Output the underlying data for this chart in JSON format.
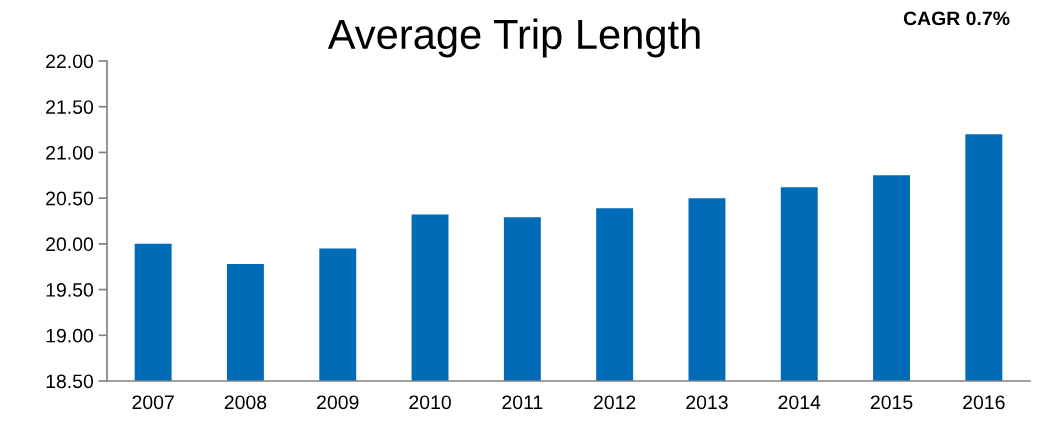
{
  "chart_data": {
    "type": "bar",
    "title": "Average Trip Length",
    "annotations": [
      "CAGR 0.7%"
    ],
    "categories": [
      "2007",
      "2008",
      "2009",
      "2010",
      "2011",
      "2012",
      "2013",
      "2014",
      "2015",
      "2016"
    ],
    "values": [
      20.0,
      19.78,
      19.95,
      20.32,
      20.29,
      20.39,
      20.5,
      20.62,
      20.75,
      21.2
    ],
    "color": "#006bb6",
    "ylim": [
      18.5,
      22.0
    ],
    "yticks": [
      {
        "value": 18.5,
        "label": "18.50"
      },
      {
        "value": 19.0,
        "label": "19.00"
      },
      {
        "value": 19.5,
        "label": "19.50"
      },
      {
        "value": 20.0,
        "label": "20.00"
      },
      {
        "value": 20.5,
        "label": "20.50"
      },
      {
        "value": 21.0,
        "label": "21.00"
      },
      {
        "value": 21.5,
        "label": "21.50"
      },
      {
        "value": 22.0,
        "label": "22.00"
      }
    ],
    "grid": false,
    "legend": false
  }
}
